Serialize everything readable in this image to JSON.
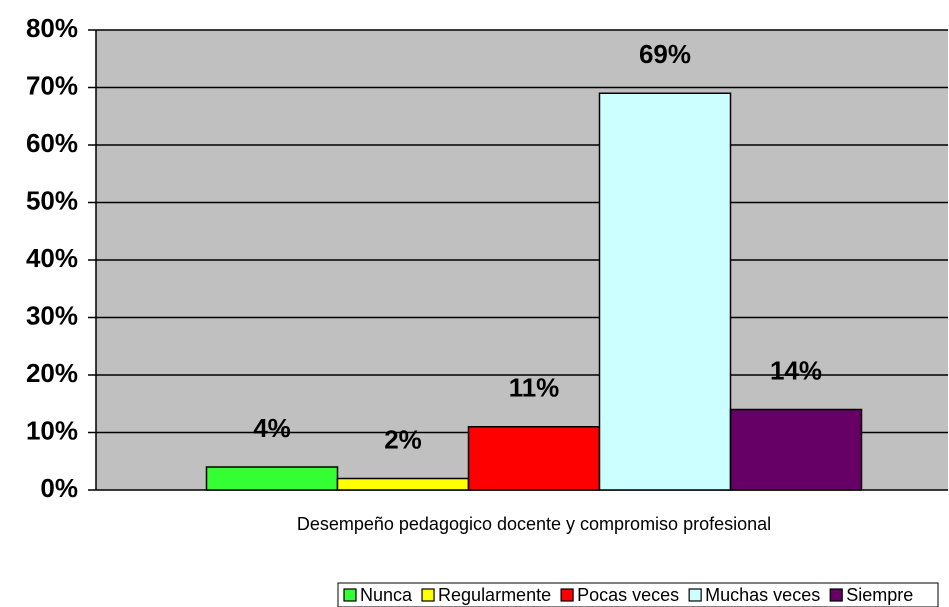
{
  "chart_data": {
    "type": "bar",
    "categories": [
      "Desempeño pedagogico docente y compromiso profesional"
    ],
    "series": [
      {
        "name": "Nunca",
        "color": "#33ff33",
        "values": [
          4
        ],
        "value_labels": [
          "4%"
        ]
      },
      {
        "name": "Regularmente",
        "color": "#ffff00",
        "values": [
          2
        ],
        "value_labels": [
          "2%"
        ]
      },
      {
        "name": "Pocas veces",
        "color": "#ff0000",
        "values": [
          11
        ],
        "value_labels": [
          "11%"
        ]
      },
      {
        "name": "Muchas veces",
        "color": "#ccffff",
        "values": [
          69
        ],
        "value_labels": [
          "69%"
        ]
      },
      {
        "name": "Siempre",
        "color": "#660066",
        "values": [
          14
        ],
        "value_labels": [
          "14%"
        ]
      }
    ],
    "ylim": [
      0,
      80
    ],
    "yticks": [
      {
        "value": 0,
        "label": "0%"
      },
      {
        "value": 10,
        "label": "10%"
      },
      {
        "value": 20,
        "label": "20%"
      },
      {
        "value": 30,
        "label": "30%"
      },
      {
        "value": 40,
        "label": "40%"
      },
      {
        "value": 50,
        "label": "50%"
      },
      {
        "value": 60,
        "label": "60%"
      },
      {
        "value": 70,
        "label": "70%"
      },
      {
        "value": 80,
        "label": "80%"
      }
    ],
    "grid": true,
    "legend": "bottom",
    "plot_color": "#c0c0c0"
  }
}
